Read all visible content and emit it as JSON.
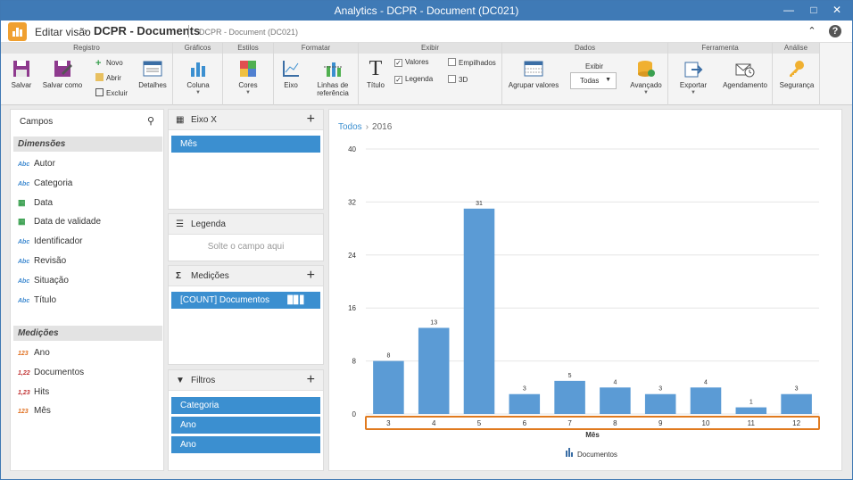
{
  "window": {
    "title": "Analytics - DCPR - Document (DC021)"
  },
  "appbar": {
    "back_label": "Editar visão",
    "doc_title": "DCPR - Documents",
    "doc_subtitle": "DCPR - Document (DC021)"
  },
  "ribbon": {
    "groups": {
      "registro": "Registro",
      "graficos": "Gráficos",
      "estilos": "Estilos",
      "formatar": "Formatar",
      "exibir": "Exibir",
      "dados": "Dados",
      "ferramenta": "Ferramenta",
      "analise": "Análise"
    },
    "buttons": {
      "salvar": "Salvar",
      "salvar_como": "Salvar como",
      "novo": "Novo",
      "abrir": "Abrir",
      "excluir": "Excluir",
      "detalhes": "Detalhes",
      "coluna": "Coluna",
      "cores": "Cores",
      "eixo": "Eixo",
      "linhas_ref_1": "Linhas de",
      "linhas_ref_2": "referência",
      "titulo": "Título",
      "valores": "Valores",
      "legenda": "Legenda",
      "empilhados": "Empilhados",
      "tres_d": "3D",
      "agrupar": "Agrupar valores",
      "exibir_label": "Exibir",
      "exibir_value": "Todas",
      "avancado": "Avançado",
      "exportar": "Exportar",
      "agendamento": "Agendamento",
      "seguranca": "Segurança"
    },
    "checks": {
      "valores": true,
      "legenda": true,
      "empilhados": false,
      "tres_d": false
    }
  },
  "fields": {
    "title": "Campos",
    "dimensions_header": "Dimensões",
    "dimensions": [
      {
        "type": "Abc",
        "label": "Autor"
      },
      {
        "type": "Abc",
        "label": "Categoria"
      },
      {
        "type": "cal",
        "label": "Data"
      },
      {
        "type": "cal",
        "label": "Data de validade"
      },
      {
        "type": "Abc",
        "label": "Identificador"
      },
      {
        "type": "Abc",
        "label": "Revisão"
      },
      {
        "type": "Abc",
        "label": "Situação"
      },
      {
        "type": "Abc",
        "label": "Título"
      }
    ],
    "measures_header": "Medições",
    "measures": [
      {
        "type": "123",
        "label": "Ano"
      },
      {
        "type": "1,22",
        "label": "Documentos"
      },
      {
        "type": "1,23",
        "label": "Hits"
      },
      {
        "type": "123",
        "label": "Mês"
      }
    ]
  },
  "boxes": {
    "eixo_x": {
      "title": "Eixo X",
      "items": [
        "Mês"
      ]
    },
    "legenda": {
      "title": "Legenda",
      "placeholder": "Solte o campo aqui"
    },
    "medicoes": {
      "title": "Medições",
      "items": [
        "[COUNT] Documentos"
      ]
    },
    "filtros": {
      "title": "Filtros",
      "items": [
        "Categoria",
        "Ano",
        "Ano"
      ]
    }
  },
  "breadcrumb": {
    "root": "Todos",
    "current": "2016"
  },
  "colors": {
    "bar": "#5b9bd5",
    "highlight": "#e07a1f",
    "chip": "#3b8fd0"
  },
  "chart_data": {
    "type": "bar",
    "categories": [
      "3",
      "4",
      "5",
      "6",
      "7",
      "8",
      "9",
      "10",
      "11",
      "12"
    ],
    "series": [
      {
        "name": "Documentos",
        "values": [
          8,
          13,
          31,
          3,
          5,
          4,
          3,
          4,
          1,
          3
        ]
      }
    ],
    "xlabel": "Mês",
    "ylabel": "",
    "ylim": [
      0,
      40
    ],
    "yticks": [
      0,
      8,
      16,
      24,
      32,
      40
    ],
    "grid": true,
    "data_labels": true,
    "legend": "bottom"
  }
}
